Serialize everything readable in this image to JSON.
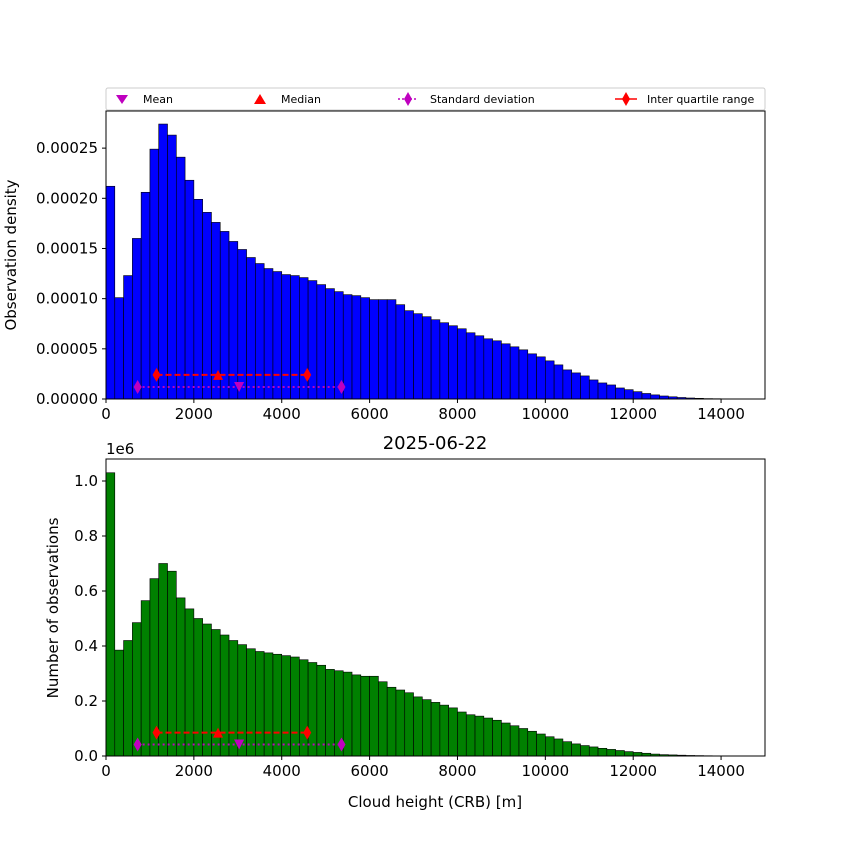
{
  "chart_data": [
    {
      "type": "bar",
      "title": "",
      "xlabel": "",
      "ylabel": "Observation density",
      "xlim": [
        0,
        15000
      ],
      "ylim": [
        0,
        0.000287
      ],
      "bin_width": 200,
      "bar_color": "#0000ff",
      "x_ticks": [
        0,
        2000,
        4000,
        6000,
        8000,
        10000,
        12000,
        14000
      ],
      "x_tick_labels": [
        "0",
        "2000",
        "4000",
        "6000",
        "8000",
        "10000",
        "12000",
        "14000"
      ],
      "y_ticks": [
        0,
        5e-05,
        0.0001,
        0.00015,
        0.0002,
        0.00025
      ],
      "y_tick_labels": [
        "0.00000",
        "0.00005",
        "0.00010",
        "0.00015",
        "0.00020",
        "0.00025"
      ],
      "values": [
        0.000212,
        0.000101,
        0.000123,
        0.00016,
        0.000206,
        0.000249,
        0.000274,
        0.000263,
        0.000241,
        0.000218,
        0.000199,
        0.000186,
        0.000176,
        0.000167,
        0.000157,
        0.000149,
        0.000141,
        0.000135,
        0.00013,
        0.000127,
        0.000124,
        0.000123,
        0.000121,
        0.000118,
        0.000114,
        0.00011,
        0.000107,
        0.000104,
        0.000103,
        0.000101,
        9.9e-05,
        9.9e-05,
        9.9e-05,
        9.4e-05,
        8.8e-05,
        8.5e-05,
        8.2e-05,
        7.9e-05,
        7.6e-05,
        7.3e-05,
        7e-05,
        6.6e-05,
        6.3e-05,
        6e-05,
        5.8e-05,
        5.5e-05,
        5.2e-05,
        4.9e-05,
        4.5e-05,
        4.2e-05,
        3.8e-05,
        3.4e-05,
        2.9e-05,
        2.6e-05,
        2.3e-05,
        1.9e-05,
        1.6e-05,
        1.4e-05,
        1.1e-05,
        9.3e-06,
        7.3e-06,
        5.5e-06,
        4.1e-06,
        3e-06,
        2.2e-06,
        1.5e-06,
        1e-06,
        7e-07,
        4e-07,
        3e-07,
        2e-07,
        1e-07
      ],
      "stats": {
        "mean": 3030,
        "median": 2550,
        "std_low": 720,
        "std_high": 5360,
        "iqr_low": 1150,
        "iqr_high": 4580,
        "marker_level_stats": 2.4e-05,
        "marker_level_std": 1.2e-05
      }
    },
    {
      "type": "bar",
      "title": "2025-06-22",
      "xlabel": "Cloud height (CRB) [m]",
      "ylabel": "Number of observations",
      "y_scale_label": "1e6",
      "xlim": [
        0,
        15000
      ],
      "ylim": [
        0,
        1.08
      ],
      "bin_width": 200,
      "bar_color": "#008000",
      "x_ticks": [
        0,
        2000,
        4000,
        6000,
        8000,
        10000,
        12000,
        14000
      ],
      "x_tick_labels": [
        "0",
        "2000",
        "4000",
        "6000",
        "8000",
        "10000",
        "12000",
        "14000"
      ],
      "y_ticks": [
        0,
        0.2,
        0.4,
        0.6,
        0.8,
        1.0
      ],
      "y_tick_labels": [
        "0.0",
        "0.2",
        "0.4",
        "0.6",
        "0.8",
        "1.0"
      ],
      "values": [
        1.03,
        0.385,
        0.42,
        0.485,
        0.565,
        0.645,
        0.7,
        0.672,
        0.575,
        0.535,
        0.5,
        0.48,
        0.46,
        0.44,
        0.42,
        0.405,
        0.39,
        0.38,
        0.375,
        0.37,
        0.365,
        0.36,
        0.35,
        0.34,
        0.33,
        0.315,
        0.31,
        0.305,
        0.295,
        0.29,
        0.29,
        0.27,
        0.25,
        0.24,
        0.23,
        0.215,
        0.205,
        0.195,
        0.185,
        0.175,
        0.16,
        0.15,
        0.145,
        0.138,
        0.13,
        0.12,
        0.11,
        0.1,
        0.09,
        0.08,
        0.07,
        0.062,
        0.052,
        0.044,
        0.038,
        0.033,
        0.028,
        0.024,
        0.02,
        0.016,
        0.013,
        0.01,
        0.007,
        0.005,
        0.004,
        0.003,
        0.002,
        0.0015,
        0.001,
        0.0007,
        0.0004,
        0.0002
      ],
      "stats": {
        "mean": 3030,
        "median": 2550,
        "std_low": 720,
        "std_high": 5360,
        "iqr_low": 1150,
        "iqr_high": 4580,
        "marker_level_stats": 0.085,
        "marker_level_std": 0.042
      }
    }
  ],
  "legend": {
    "placement": "top",
    "items": [
      {
        "label": "Mean",
        "marker": "triangle-down",
        "color": "#bf00bf"
      },
      {
        "label": "Median",
        "marker": "triangle-up",
        "color": "#ff0000"
      },
      {
        "label": "Standard deviation",
        "marker": "diamond-dotted",
        "color": "#bf00bf"
      },
      {
        "label": "Inter quartile range",
        "marker": "diamond-line",
        "color": "#ff0000"
      }
    ]
  }
}
